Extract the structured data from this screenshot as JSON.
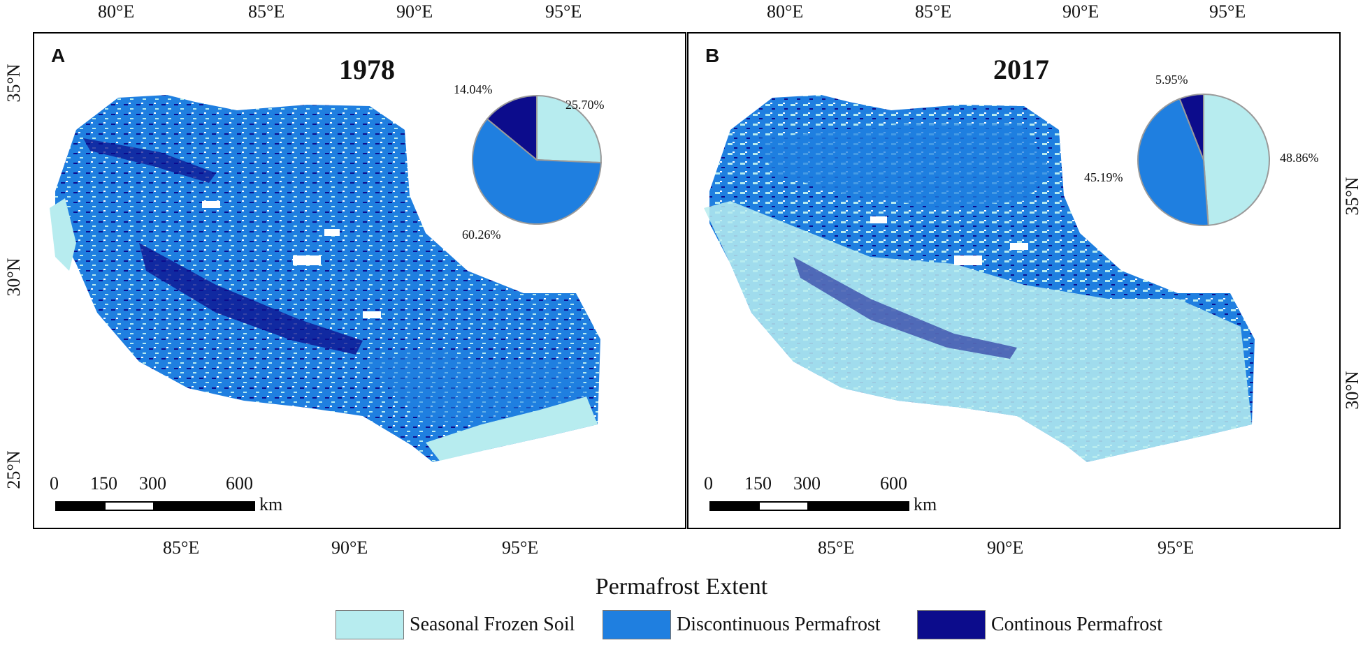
{
  "colors": {
    "seasonal": "#b7ecef",
    "discontinuous": "#1f7fe0",
    "continuous": "#0c0c8c"
  },
  "panels": [
    {
      "letter": "A",
      "year": "1978",
      "pie": [
        {
          "class": "Seasonal Frozen Soil",
          "label": "25.70%",
          "value": 25.7
        },
        {
          "class": "Discontinuous Permafrost",
          "label": "60.26%",
          "value": 60.26
        },
        {
          "class": "Continous Permafrost",
          "label": "14.04%",
          "value": 14.04
        }
      ],
      "top_ticks": [
        "80°E",
        "85°E",
        "90°E",
        "95°E"
      ],
      "bottom_ticks": [
        "85°E",
        "90°E",
        "95°E"
      ],
      "lat_ticks": [
        "35°N",
        "30°N",
        "25°N"
      ],
      "scale": {
        "labels": [
          "0",
          "150",
          "300",
          "600"
        ],
        "unit": "km"
      }
    },
    {
      "letter": "B",
      "year": "2017",
      "pie": [
        {
          "class": "Seasonal Frozen Soil",
          "label": "48.86%",
          "value": 48.86
        },
        {
          "class": "Discontinuous Permafrost",
          "label": "45.19%",
          "value": 45.19
        },
        {
          "class": "Continous Permafrost",
          "label": "5.95%",
          "value": 5.95
        }
      ],
      "top_ticks": [
        "80°E",
        "85°E",
        "90°E",
        "95°E"
      ],
      "bottom_ticks": [
        "85°E",
        "90°E",
        "95°E"
      ],
      "lat_ticks": [
        "35°N",
        "30°N"
      ],
      "scale": {
        "labels": [
          "0",
          "150",
          "300",
          "600"
        ],
        "unit": "km"
      }
    }
  ],
  "legend": {
    "title": "Permafrost Extent",
    "items": [
      {
        "label": "Seasonal Frozen Soil",
        "color": "#b7ecef"
      },
      {
        "label": "Discontinuous Permafrost",
        "color": "#1f7fe0"
      },
      {
        "label": "Continous Permafrost",
        "color": "#0c0c8c"
      }
    ]
  }
}
